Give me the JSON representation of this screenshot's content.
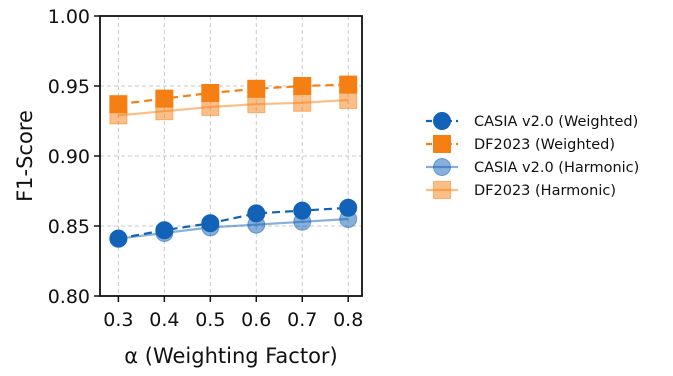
{
  "chart_data": {
    "type": "line",
    "xlabel": "α (Weighting Factor)",
    "ylabel": "F1-Score",
    "x": [
      0.3,
      0.4,
      0.5,
      0.6,
      0.7,
      0.8
    ],
    "x_tick_labels": [
      "0.3",
      "0.4",
      "0.5",
      "0.6",
      "0.7",
      "0.8"
    ],
    "xlim": [
      0.26,
      0.83
    ],
    "ylim": [
      0.8,
      1.0
    ],
    "y_ticks": [
      0.8,
      0.85,
      0.9,
      0.95,
      1.0
    ],
    "y_tick_labels": [
      "0.80",
      "0.85",
      "0.90",
      "0.95",
      "1.00"
    ],
    "grid": true,
    "legend_position": "right, outside plot",
    "series": [
      {
        "name": "CASIA v2.0 (Weighted)",
        "values": [
          0.841,
          0.847,
          0.852,
          0.859,
          0.861,
          0.863
        ],
        "color": "#1262b8",
        "marker": "circle",
        "line": "dashed",
        "alpha": 1.0
      },
      {
        "name": "DF2023 (Weighted)",
        "values": [
          0.937,
          0.941,
          0.945,
          0.948,
          0.95,
          0.951
        ],
        "color": "#f57f12",
        "marker": "square",
        "line": "dashed",
        "alpha": 1.0
      },
      {
        "name": "CASIA v2.0 (Harmonic)",
        "values": [
          0.841,
          0.845,
          0.849,
          0.851,
          0.853,
          0.855
        ],
        "color": "#1262b8",
        "marker": "circle",
        "line": "solid",
        "alpha": 0.5
      },
      {
        "name": "DF2023 (Harmonic)",
        "values": [
          0.929,
          0.932,
          0.935,
          0.937,
          0.938,
          0.94
        ],
        "color": "#f57f12",
        "marker": "square",
        "line": "solid",
        "alpha": 0.5
      }
    ]
  }
}
